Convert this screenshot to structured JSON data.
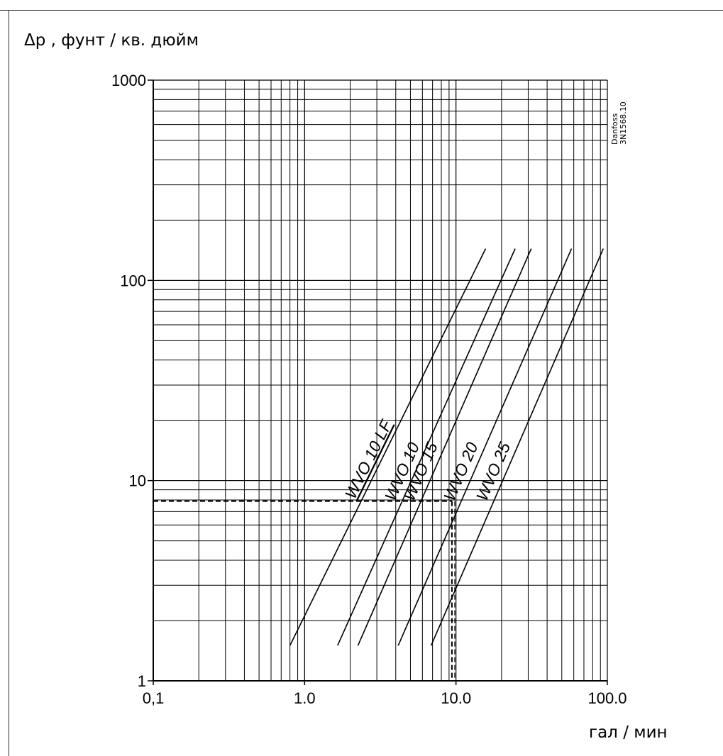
{
  "chart_data": {
    "type": "line",
    "ylabel": "Δp , фунт / кв. дюйм",
    "xlabel": "гал / мин",
    "x_scale": "log",
    "y_scale": "log",
    "xlim": [
      0.1,
      100
    ],
    "ylim": [
      1,
      1000
    ],
    "grid": true,
    "x_tick_labels": [
      {
        "value": 0.1,
        "label": "0,1"
      },
      {
        "value": 1,
        "label": "1.0"
      },
      {
        "value": 10,
        "label": "10.0"
      },
      {
        "value": 100,
        "label": "100.0"
      }
    ],
    "y_tick_labels": [
      {
        "value": 1,
        "label": "1"
      },
      {
        "value": 10,
        "label": "10"
      },
      {
        "value": 100,
        "label": "100"
      },
      {
        "value": 1000,
        "label": "1000"
      }
    ],
    "series": [
      {
        "name": "WVO 10 LF",
        "x": [
          0.8,
          15.7
        ],
        "y": [
          1.5,
          144
        ]
      },
      {
        "name": "WVO 10",
        "x": [
          1.65,
          24.6
        ],
        "y": [
          1.5,
          144
        ]
      },
      {
        "name": "WVO 15",
        "x": [
          2.25,
          31.4
        ],
        "y": [
          1.5,
          144
        ]
      },
      {
        "name": "WVO 20",
        "x": [
          4.15,
          58
        ],
        "y": [
          1.5,
          144
        ]
      },
      {
        "name": "WVO 25",
        "x": [
          6.85,
          94
        ],
        "y": [
          1.5,
          144
        ]
      }
    ],
    "example": {
      "x": 9.4,
      "y": 7.9,
      "style": "dashed"
    }
  },
  "source_note": {
    "line1": "Danfoss",
    "line2": "3N1568.10"
  }
}
